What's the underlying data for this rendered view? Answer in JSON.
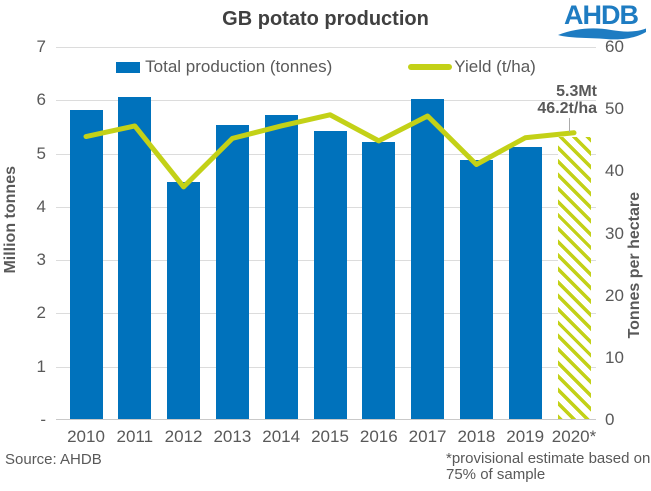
{
  "header": {
    "title": "GB potato production",
    "logo_text": "AHDB",
    "logo_color": "#1e7cc2"
  },
  "legend": {
    "production_label": "Total production (tonnes)",
    "yield_label": "Yield (t/ha)"
  },
  "axes": {
    "left_title": "Million tonnes",
    "right_title": "Tonnes per hectare",
    "left_ticks": [
      "7",
      "6",
      "5",
      "4",
      "3",
      "2",
      "1",
      "-"
    ],
    "right_ticks": [
      "60",
      "50",
      "40",
      "30",
      "20",
      "10",
      "0"
    ]
  },
  "annotation": {
    "line1": "5.3Mt",
    "line2": "46.2t/ha"
  },
  "footer": {
    "source": "Source: AHDB",
    "footnote_line1": "*provisional estimate based on",
    "footnote_line2": "75% of sample"
  },
  "colors": {
    "bar": "#0072bc",
    "line": "#c3d117",
    "text_dark": "#404040",
    "text_gray": "#595959",
    "gridline": "#dcdcdc"
  },
  "chart_data": {
    "type": "bar",
    "title": "GB potato production",
    "categories": [
      "2010",
      "2011",
      "2012",
      "2013",
      "2014",
      "2015",
      "2016",
      "2017",
      "2018",
      "2019",
      "2020*"
    ],
    "series": [
      {
        "name": "Total production (tonnes)",
        "type": "bar",
        "unit": "million tonnes",
        "axis": "left",
        "values": [
          5.8,
          6.05,
          4.45,
          5.52,
          5.7,
          5.41,
          5.19,
          6.0,
          4.86,
          5.11,
          5.3
        ]
      },
      {
        "name": "Yield (t/ha)",
        "type": "line",
        "unit": "t/ha",
        "axis": "right",
        "values": [
          45.6,
          47.3,
          37.5,
          45.3,
          47.3,
          49.1,
          44.9,
          48.9,
          41.1,
          45.4,
          46.2
        ]
      }
    ],
    "left_axis": {
      "label": "Million tonnes",
      "min": 0,
      "max": 7,
      "tick_step": 1
    },
    "right_axis": {
      "label": "Tonnes per hectare",
      "min": 0,
      "max": 60,
      "tick_step": 10
    },
    "grid": true,
    "legend_position": "top",
    "last_category_provisional_hatched": true
  }
}
